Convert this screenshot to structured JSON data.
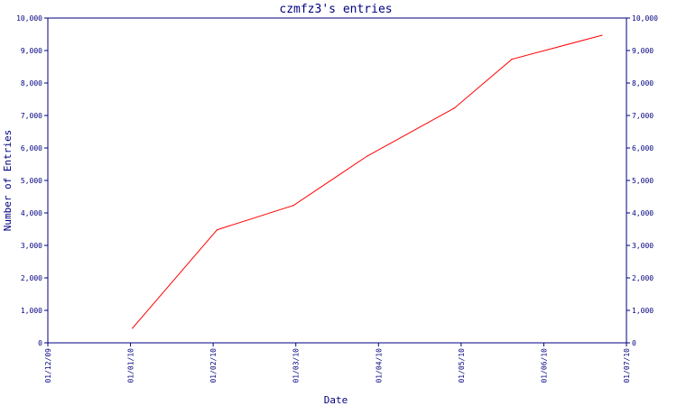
{
  "chart_data": {
    "type": "line",
    "title": "czmfz3's entries",
    "xlabel": "Date",
    "ylabel": "Number of Entries",
    "x_ticks": [
      "01/12/09",
      "01/01/10",
      "01/02/10",
      "01/03/10",
      "01/04/10",
      "01/05/10",
      "01/06/10",
      "01/07/10"
    ],
    "y_ticks": [
      "0",
      "1,000",
      "2,000",
      "3,000",
      "4,000",
      "5,000",
      "6,000",
      "7,000",
      "8,000",
      "9,000",
      "10,000"
    ],
    "ylim": [
      0,
      10000
    ],
    "xlim": [
      "2009-12-01",
      "2010-07-01"
    ],
    "grid": false,
    "legend": "none",
    "colors": {
      "axis": "#000080",
      "line": "#ff0000",
      "text": "#000080"
    },
    "series": [
      {
        "points": [
          {
            "x": "2010-01-01",
            "y": 450
          },
          {
            "x": "2010-02-01",
            "y": 3480
          },
          {
            "x": "2010-03-01",
            "y": 4230
          },
          {
            "x": "2010-03-28",
            "y": 5750
          },
          {
            "x": "2010-04-29",
            "y": 7230
          },
          {
            "x": "2010-05-20",
            "y": 8730
          },
          {
            "x": "2010-06-22",
            "y": 9470
          }
        ]
      }
    ]
  }
}
